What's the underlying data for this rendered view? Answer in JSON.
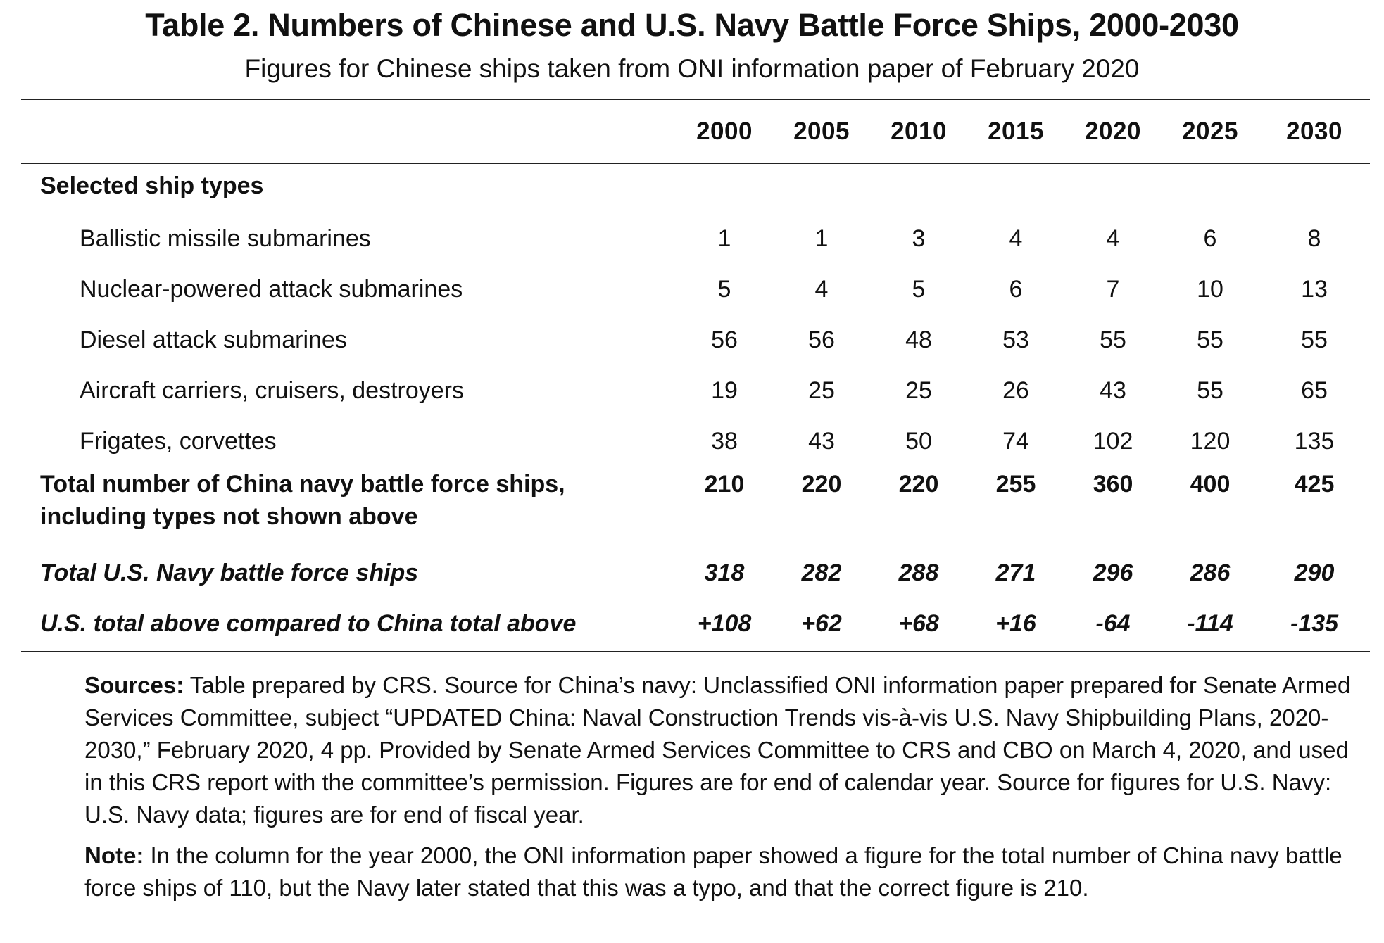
{
  "title": "Table 2. Numbers of Chinese and U.S. Navy Battle Force Ships, 2000-2030",
  "subtitle": "Figures for Chinese ships taken from ONI information paper of February 2020",
  "table": {
    "years": [
      "2000",
      "2005",
      "2010",
      "2015",
      "2020",
      "2025",
      "2030"
    ],
    "section_label": "Selected ship types",
    "ship_rows": [
      {
        "label": "Ballistic missile submarines",
        "values": [
          "1",
          "1",
          "3",
          "4",
          "4",
          "6",
          "8"
        ]
      },
      {
        "label": "Nuclear-powered attack submarines",
        "values": [
          "5",
          "4",
          "5",
          "6",
          "7",
          "10",
          "13"
        ]
      },
      {
        "label": "Diesel attack submarines",
        "values": [
          "56",
          "56",
          "48",
          "53",
          "55",
          "55",
          "55"
        ]
      },
      {
        "label": "Aircraft carriers, cruisers, destroyers",
        "values": [
          "19",
          "25",
          "25",
          "26",
          "43",
          "55",
          "65"
        ]
      },
      {
        "label": "Frigates, corvettes",
        "values": [
          "38",
          "43",
          "50",
          "74",
          "102",
          "120",
          "135"
        ]
      }
    ],
    "china_total": {
      "label_line1": "Total number of China navy battle force ships,",
      "label_line2": "including types not shown above",
      "values": [
        "210",
        "220",
        "220",
        "255",
        "360",
        "400",
        "425"
      ]
    },
    "us_total": {
      "label": "Total U.S. Navy battle force ships",
      "values": [
        "318",
        "282",
        "288",
        "271",
        "296",
        "286",
        "290"
      ]
    },
    "difference": {
      "label": "U.S. total above compared to China total above",
      "values": [
        "+108",
        "+62",
        "+68",
        "+16",
        "-64",
        "-114",
        "-135"
      ]
    }
  },
  "notes": {
    "sources_label": "Sources:",
    "sources_text": " Table prepared by CRS. Source for China’s navy: Unclassified ONI information paper prepared for Senate Armed Services Committee, subject “UPDATED China: Naval Construction Trends vis-à-vis U.S. Navy Shipbuilding Plans, 2020-2030,” February 2020, 4 pp. Provided by Senate Armed Services Committee to CRS and CBO on March 4, 2020, and used in this CRS report with the committee’s permission. Figures are for end of calendar year. Source for figures for U.S. Navy: U.S. Navy data; figures are for end of fiscal year.",
    "note_label": "Note:",
    "note_text": " In the column for the year 2000, the ONI information paper showed a figure for the total number of China navy battle force ships of 110, but the Navy later stated that this was a typo, and that the correct figure is 210."
  }
}
